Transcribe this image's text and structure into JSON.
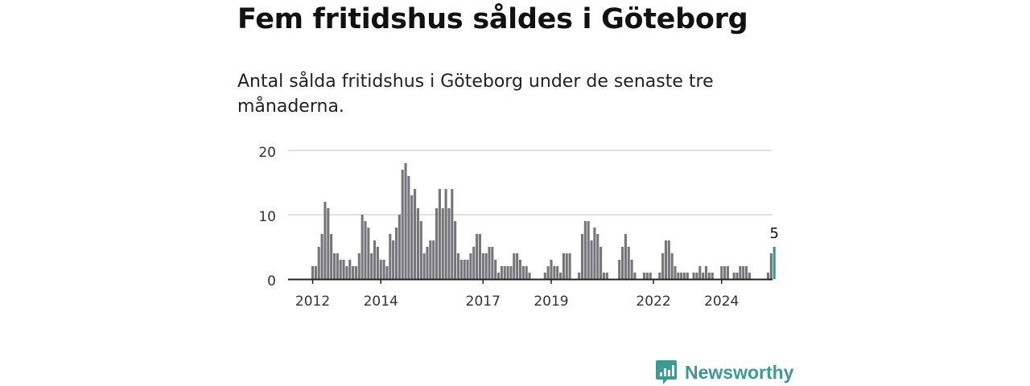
{
  "header": {
    "title": "Fem fritidshus såldes i Göteborg",
    "subtitle": "Antal sålda fritidshus i Göteborg under de senaste tre månaderna."
  },
  "brand": {
    "name": "Newsworthy",
    "color": "#3c9a94"
  },
  "chart_data": {
    "type": "bar",
    "title": "Fem fritidshus såldes i Göteborg",
    "subtitle": "Antal sålda fritidshus i Göteborg under de senaste tre månaderna.",
    "xlabel": "",
    "ylabel": "",
    "ylim": [
      0,
      20
    ],
    "yticks": [
      0,
      10,
      20
    ],
    "grid": true,
    "bar_color": "#76757a",
    "highlight_color": "#2e9a94",
    "x_start": "2012-01",
    "x_unit": "month",
    "xtick_labels": [
      {
        "label": "2012",
        "index": 0
      },
      {
        "label": "2014",
        "index": 22
      },
      {
        "label": "2017",
        "index": 55
      },
      {
        "label": "2019",
        "index": 77
      },
      {
        "label": "2022",
        "index": 110
      },
      {
        "label": "2024",
        "index": 132
      }
    ],
    "values": [
      2,
      2,
      5,
      7,
      12,
      11,
      7,
      4,
      4,
      3,
      3,
      2,
      3,
      2,
      2,
      4,
      10,
      9,
      8,
      4,
      6,
      5,
      3,
      3,
      2,
      7,
      6,
      8,
      10,
      17,
      18,
      16,
      13,
      14,
      11,
      9,
      4,
      5,
      6,
      6,
      11,
      14,
      11,
      14,
      11,
      14,
      9,
      4,
      3,
      3,
      3,
      4,
      5,
      7,
      7,
      4,
      4,
      5,
      5,
      3,
      1,
      2,
      2,
      2,
      2,
      4,
      4,
      3,
      2,
      2,
      1,
      0,
      0,
      0,
      0,
      1,
      2,
      3,
      2,
      2,
      1,
      4,
      4,
      4,
      0,
      0,
      1,
      7,
      9,
      9,
      6,
      8,
      7,
      5,
      1,
      1,
      0,
      0,
      0,
      3,
      5,
      7,
      5,
      3,
      1,
      0,
      0,
      1,
      1,
      1,
      0,
      0,
      1,
      4,
      6,
      6,
      4,
      2,
      1,
      1,
      1,
      1,
      0,
      1,
      1,
      2,
      1,
      2,
      1,
      1,
      0,
      0,
      2,
      2,
      2,
      0,
      1,
      1,
      2,
      2,
      2,
      1,
      0,
      0,
      0,
      0,
      0,
      1,
      4,
      5
    ],
    "highlight_last": true,
    "annotation": {
      "text": "5",
      "target": "last"
    }
  }
}
